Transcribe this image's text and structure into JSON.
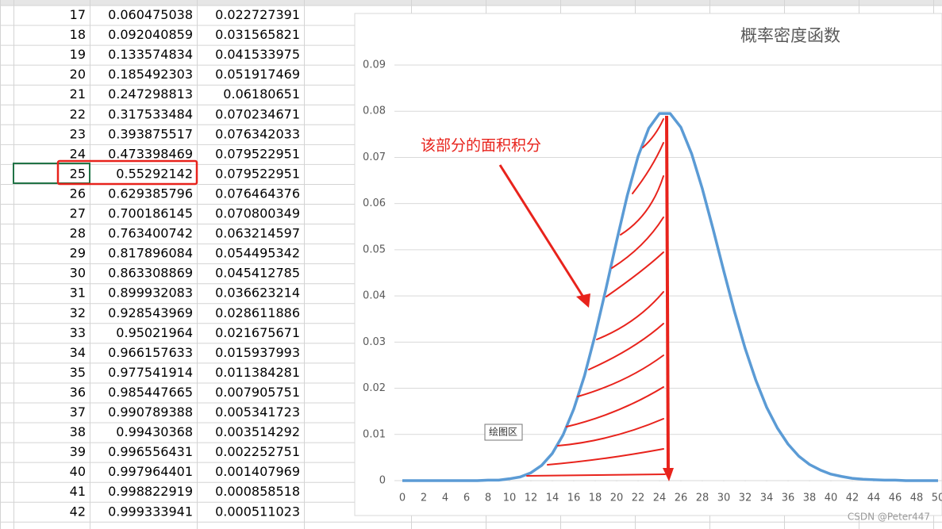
{
  "table": {
    "rows": [
      [
        "17",
        "0.060475038",
        "0.022727391"
      ],
      [
        "18",
        "0.092040859",
        "0.031565821"
      ],
      [
        "19",
        "0.133574834",
        "0.041533975"
      ],
      [
        "20",
        "0.185492303",
        "0.051917469"
      ],
      [
        "21",
        "0.247298813",
        "0.06180651"
      ],
      [
        "22",
        "0.317533484",
        "0.070234671"
      ],
      [
        "23",
        "0.393875517",
        "0.076342033"
      ],
      [
        "24",
        "0.473398469",
        "0.079522951"
      ],
      [
        "25",
        "0.55292142",
        "0.079522951"
      ],
      [
        "26",
        "0.629385796",
        "0.076464376"
      ],
      [
        "27",
        "0.700186145",
        "0.070800349"
      ],
      [
        "28",
        "0.763400742",
        "0.063214597"
      ],
      [
        "29",
        "0.817896084",
        "0.054495342"
      ],
      [
        "30",
        "0.863308869",
        "0.045412785"
      ],
      [
        "31",
        "0.899932083",
        "0.036623214"
      ],
      [
        "32",
        "0.928543969",
        "0.028611886"
      ],
      [
        "33",
        "0.95021964",
        "0.021675671"
      ],
      [
        "34",
        "0.966157633",
        "0.015937993"
      ],
      [
        "35",
        "0.977541914",
        "0.011384281"
      ],
      [
        "36",
        "0.985447665",
        "0.007905751"
      ],
      [
        "37",
        "0.990789388",
        "0.005341723"
      ],
      [
        "38",
        "0.99430368",
        "0.003514292"
      ],
      [
        "39",
        "0.996556431",
        "0.002252751"
      ],
      [
        "40",
        "0.997964401",
        "0.001407969"
      ],
      [
        "41",
        "0.998822919",
        "0.000858518"
      ],
      [
        "42",
        "0.999333941",
        "0.000511023"
      ]
    ]
  },
  "chart_data": {
    "type": "line",
    "title": "概率密度函数",
    "x": [
      0,
      1,
      2,
      3,
      4,
      5,
      6,
      7,
      8,
      9,
      10,
      11,
      12,
      13,
      14,
      15,
      16,
      17,
      18,
      19,
      20,
      21,
      22,
      23,
      24,
      25,
      26,
      27,
      28,
      29,
      30,
      31,
      32,
      33,
      34,
      35,
      36,
      37,
      38,
      39,
      40,
      41,
      42,
      43,
      44,
      45,
      46,
      47,
      48,
      49,
      50
    ],
    "values": [
      0,
      0,
      0,
      0,
      0,
      0,
      0,
      0,
      0.0001,
      0.0001,
      0.0004,
      0.0008,
      0.0017,
      0.0033,
      0.0059,
      0.0099,
      0.0155,
      0.0227,
      0.0316,
      0.0415,
      0.0519,
      0.0618,
      0.0702,
      0.0763,
      0.0795,
      0.0795,
      0.0765,
      0.0708,
      0.0632,
      0.0545,
      0.0454,
      0.0366,
      0.0286,
      0.0217,
      0.0159,
      0.0114,
      0.0079,
      0.0053,
      0.0035,
      0.0023,
      0.0014,
      0.0009,
      0.0005,
      0.0003,
      0.0002,
      0.0001,
      0.0001,
      0,
      0,
      0,
      0
    ],
    "color": "#5b9bd5",
    "xlim": [
      0,
      50
    ],
    "ylim": [
      0,
      0.09
    ],
    "xticks": [
      0,
      2,
      4,
      6,
      8,
      10,
      12,
      14,
      16,
      18,
      20,
      22,
      24,
      26,
      28,
      30,
      32,
      34,
      36,
      38,
      40,
      42,
      44,
      46,
      48,
      50
    ],
    "yticks": [
      0,
      0.01,
      0.02,
      0.03,
      0.04,
      0.05,
      0.06,
      0.07,
      0.08,
      0.09
    ],
    "grid": true,
    "annotation": "该部分的面积积分",
    "tooltip": "绘图区"
  },
  "watermark": "CSDN @Peter447"
}
